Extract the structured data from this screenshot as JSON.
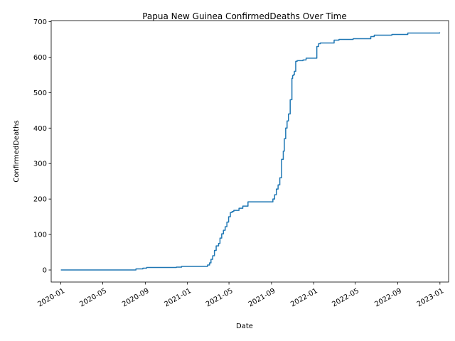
{
  "chart_data": {
    "type": "line",
    "title": "Papua New Guinea  ConfirmedDeaths Over Time",
    "xlabel": "Date",
    "ylabel": "ConfirmedDeaths",
    "x_ticks": [
      "2020-01",
      "2020-05",
      "2020-09",
      "2021-01",
      "2021-05",
      "2021-09",
      "2022-01",
      "2022-05",
      "2022-09",
      "2023-01"
    ],
    "y_ticks": [
      0,
      100,
      200,
      300,
      400,
      500,
      600,
      700
    ],
    "xlim": [
      "2019-12-04",
      "2023-01-26"
    ],
    "ylim": [
      -34,
      703
    ],
    "grid": false,
    "color": "#1f77b4",
    "series": [
      {
        "x": [
          "2020-01-01",
          "2020-07-28",
          "2020-08-05",
          "2020-08-25",
          "2020-09-05",
          "2020-11-30",
          "2020-12-15",
          "2021-02-20",
          "2021-02-28",
          "2021-03-06",
          "2021-03-10",
          "2021-03-15",
          "2021-03-20",
          "2021-03-25",
          "2021-04-01",
          "2021-04-05",
          "2021-04-10",
          "2021-04-15",
          "2021-04-20",
          "2021-04-25",
          "2021-04-30",
          "2021-05-05",
          "2021-05-10",
          "2021-05-15",
          "2021-05-30",
          "2021-06-10",
          "2021-06-25",
          "2021-07-05",
          "2021-07-10",
          "2021-08-30",
          "2021-09-05",
          "2021-09-10",
          "2021-09-15",
          "2021-09-20",
          "2021-09-25",
          "2021-09-30",
          "2021-10-05",
          "2021-10-08",
          "2021-10-12",
          "2021-10-16",
          "2021-10-20",
          "2021-10-25",
          "2021-10-30",
          "2021-11-01",
          "2021-11-03",
          "2021-11-06",
          "2021-11-10",
          "2021-11-14",
          "2021-11-18",
          "2021-12-01",
          "2021-12-10",
          "2022-01-01",
          "2022-01-10",
          "2022-01-15",
          "2022-01-20",
          "2022-02-15",
          "2022-03-01",
          "2022-03-15",
          "2022-04-15",
          "2022-04-25",
          "2022-06-15",
          "2022-06-25",
          "2022-08-01",
          "2022-08-15",
          "2022-09-30",
          "2022-12-31"
        ],
        "y": [
          0,
          0,
          3,
          5,
          7,
          8,
          10,
          10,
          14,
          20,
          30,
          40,
          55,
          68,
          75,
          90,
          102,
          112,
          122,
          135,
          150,
          162,
          165,
          168,
          174,
          180,
          192,
          192,
          192,
          192,
          200,
          212,
          228,
          240,
          260,
          312,
          335,
          370,
          400,
          420,
          440,
          480,
          540,
          548,
          550,
          560,
          588,
          590,
          590,
          592,
          597,
          597,
          630,
          638,
          640,
          640,
          648,
          650,
          650,
          652,
          658,
          662,
          662,
          664,
          668,
          670
        ]
      }
    ]
  }
}
